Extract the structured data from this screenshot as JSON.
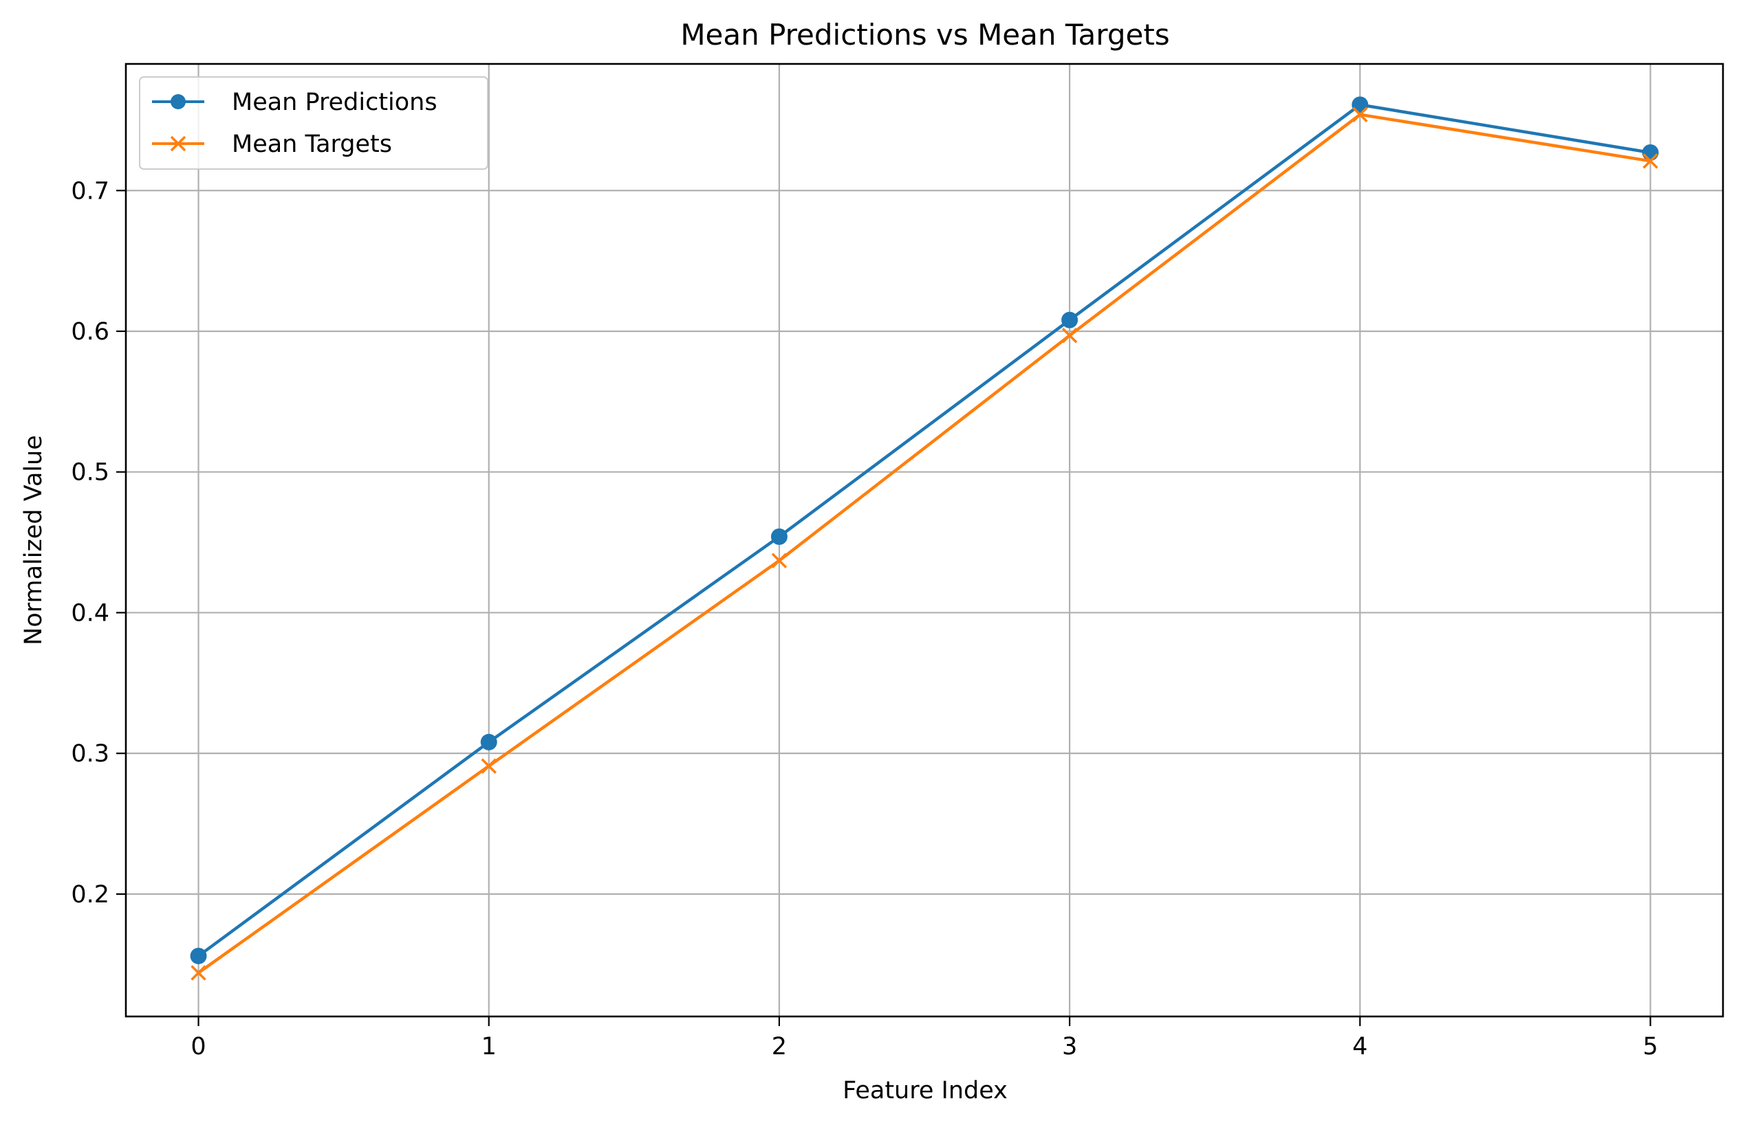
{
  "chart_data": {
    "type": "line",
    "title": "Mean Predictions vs Mean Targets",
    "xlabel": "Feature Index",
    "ylabel": "Normalized Value",
    "x": [
      0,
      1,
      2,
      3,
      4,
      5
    ],
    "xticks": [
      "0",
      "1",
      "2",
      "3",
      "4",
      "5"
    ],
    "yticks": [
      "0.2",
      "0.3",
      "0.4",
      "0.5",
      "0.6",
      "0.7"
    ],
    "xlim": [
      -0.25,
      5.25
    ],
    "ylim": [
      0.113,
      0.79
    ],
    "grid": true,
    "legend_position": "upper-left",
    "series": [
      {
        "name": "Mean Predictions",
        "marker": "circle",
        "color": "#1f77b4",
        "values": [
          0.156,
          0.308,
          0.454,
          0.608,
          0.761,
          0.727
        ]
      },
      {
        "name": "Mean Targets",
        "marker": "x",
        "color": "#ff7f0e",
        "values": [
          0.144,
          0.291,
          0.437,
          0.597,
          0.754,
          0.721
        ]
      }
    ]
  }
}
